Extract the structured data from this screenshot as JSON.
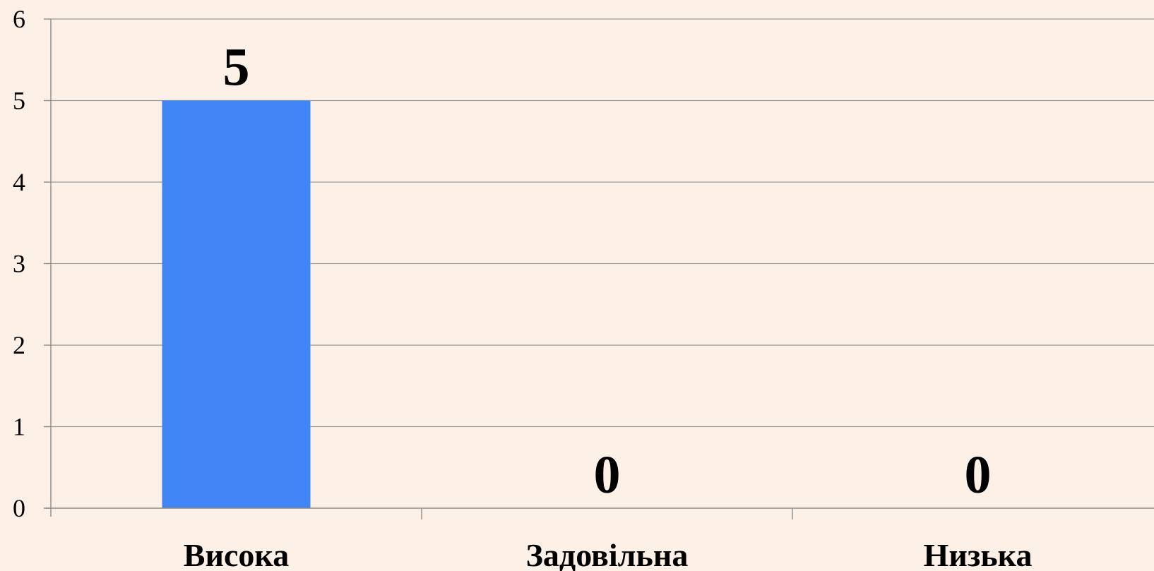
{
  "chart_data": {
    "type": "bar",
    "categories": [
      "Висока",
      "Задовільна",
      "Низька"
    ],
    "values": [
      5,
      0,
      0
    ],
    "data_labels": [
      "5",
      "0",
      "0"
    ],
    "title": "",
    "xlabel": "",
    "ylabel": "",
    "ylim": [
      0,
      6
    ],
    "yticks": [
      0,
      1,
      2,
      3,
      4,
      5,
      6
    ],
    "grid": true,
    "legend": "none",
    "bar_color": "#4285f4",
    "background_color": "#fdf0e7"
  }
}
